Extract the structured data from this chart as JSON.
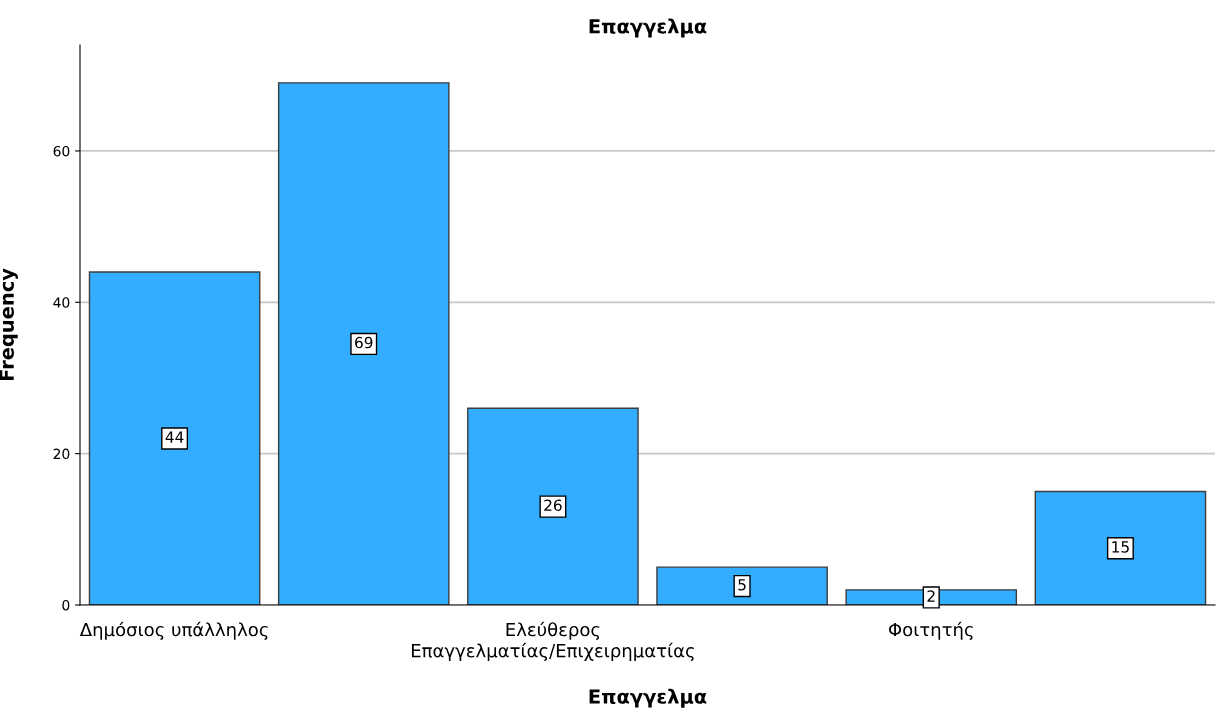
{
  "chart_data": {
    "type": "bar",
    "title": "Επαγγελμα",
    "xlabel": "Επαγγελμα",
    "ylabel": "Frequency",
    "categories": [
      "Δημόσιος υπάλληλος",
      null,
      "Ελεύθερος\nΕπαγγελματίας/Επιχειρηματίας",
      null,
      "Φοιτητής",
      null
    ],
    "values": [
      44,
      69,
      26,
      5,
      2,
      15
    ],
    "color": "#33adff",
    "ylim": [
      0,
      74
    ],
    "yticks": [
      0,
      20,
      40,
      60
    ],
    "grid": "y",
    "data_labels": true
  }
}
